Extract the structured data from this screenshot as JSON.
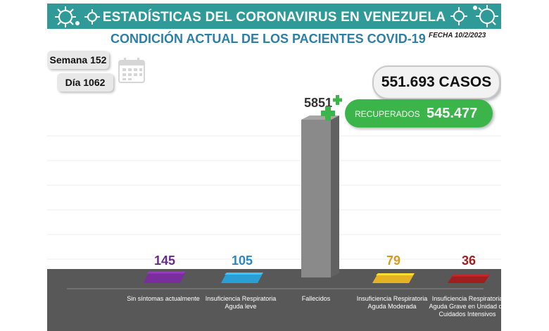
{
  "header": {
    "title": "ESTADÍSTICAS DEL CORONAVIRUS EN VENEZUELA",
    "subtitle": "CONDICIÓN ACTUAL DE LOS PACIENTES COVID-19",
    "fecha": "FECHA 10/2/2023"
  },
  "info": {
    "semana": "Semana 152",
    "dia": "Día 1062"
  },
  "totals": {
    "casos": "551.693 CASOS",
    "recuperados_label": "RECUPERADOS",
    "recuperados_value": "545.477"
  },
  "icons": [
    "virus-icon",
    "calendar-icon",
    "plus-icon"
  ],
  "colors": {
    "banner": "#2f9a97",
    "subtitle": "#2c7fa5",
    "recuperados": "#3bb54a",
    "floor": "#585858"
  },
  "chart_data": {
    "type": "bar",
    "title": "",
    "xlabel": "",
    "ylabel": "",
    "ylim": [
      0,
      5851
    ],
    "grid": true,
    "categories": [
      "Sin síntomas actualmente",
      "Insuficiencia Respiratoria Aguda leve",
      "Fallecidos",
      "Insuficiencia Respiratoria Aguda Moderada",
      "Insuficiencia Respiratoria Aguda Grave en Unidad de Cuidados Intensivos"
    ],
    "values": [
      145,
      105,
      5851,
      79,
      36
    ],
    "colors": [
      "#7a2d9c",
      "#2a9fd6",
      "#8a8a8a",
      "#e5b224",
      "#a11e1e"
    ],
    "label_colors": [
      "#6a2a8c",
      "#2a86c4",
      "#333333",
      "#d99a1c",
      "#a11e1e"
    ]
  }
}
